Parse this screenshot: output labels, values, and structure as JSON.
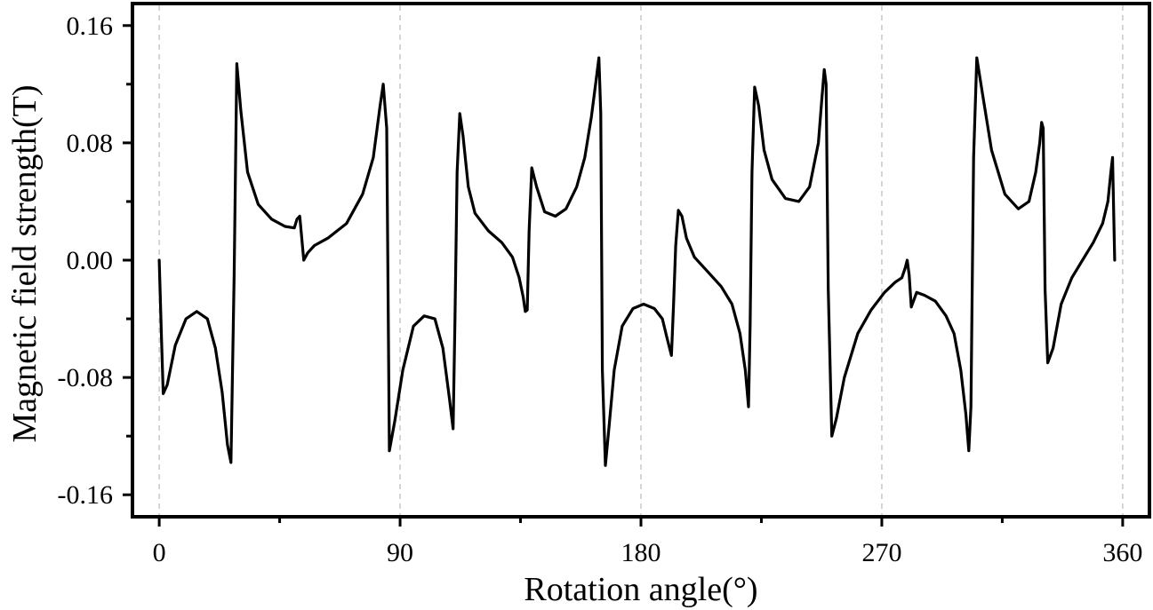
{
  "chart_data": {
    "type": "line",
    "title": "",
    "xlabel": "Rotation angle(°)",
    "ylabel": "Magnetic field strength(T)",
    "xlim": [
      -10,
      370
    ],
    "ylim": [
      -0.175,
      0.175
    ],
    "xticks": [
      0,
      90,
      180,
      270,
      360
    ],
    "xtick_labels": [
      "0",
      "90",
      "180",
      "270",
      "360"
    ],
    "yticks": [
      -0.16,
      -0.08,
      0.0,
      0.08,
      0.16
    ],
    "ytick_labels": [
      "-0.16",
      "-0.08",
      "0.00",
      "0.08",
      "0.16"
    ],
    "grid": "vertical dashed at major x ticks",
    "series": [
      {
        "name": "Magnetic field strength",
        "color": "#000000",
        "x": [
          0,
          0.8,
          1.5,
          3,
          6,
          10,
          14,
          18,
          21,
          23.5,
          25.5,
          26.8,
          28,
          29,
          30.5,
          33,
          37,
          42,
          47,
          50.5,
          51.5,
          52.5,
          54,
          55.5,
          58,
          63,
          70,
          76,
          80,
          82.5,
          83.7,
          85,
          86,
          88,
          91,
          95,
          99,
          103,
          106,
          108.5,
          109.8,
          110.5,
          111.3,
          112.3,
          113.5,
          115.5,
          118,
          123,
          128,
          132,
          134.5,
          136,
          136.8,
          137.5,
          138.2,
          139.2,
          141,
          144,
          148,
          152,
          156,
          159,
          161.5,
          163.2,
          164.3,
          165,
          165.6,
          166.7,
          168,
          170,
          173,
          177,
          181,
          185,
          188,
          190,
          191.4,
          192.2,
          193,
          194,
          195.3,
          197,
          200,
          205,
          210,
          214,
          217,
          219,
          220.2,
          220.8,
          221.5,
          222.5,
          224,
          226,
          229,
          234,
          239,
          243,
          246.3,
          247.6,
          248.5,
          249.2,
          250,
          251.3,
          253,
          256,
          261,
          266,
          271,
          275,
          277.5,
          278.8,
          279.5,
          280.2,
          281,
          283,
          286,
          290,
          294,
          297,
          299.5,
          301.4,
          302.5,
          303.3,
          304.3,
          305.5,
          307.5,
          311,
          316,
          321,
          325,
          327.5,
          329,
          329.7,
          330.3,
          331,
          332,
          334,
          337,
          341,
          345,
          349,
          352.5,
          354.5,
          355.6,
          356.2,
          357
        ],
        "y": [
          0,
          -0.05,
          -0.091,
          -0.085,
          -0.058,
          -0.04,
          -0.035,
          -0.04,
          -0.06,
          -0.09,
          -0.126,
          -0.138,
          -0.01,
          0.134,
          0.102,
          0.06,
          0.038,
          0.028,
          0.023,
          0.022,
          0.028,
          0.03,
          0.0,
          0.005,
          0.01,
          0.015,
          0.025,
          0.045,
          0.07,
          0.105,
          0.12,
          0.09,
          -0.13,
          -0.11,
          -0.075,
          -0.045,
          -0.038,
          -0.04,
          -0.06,
          -0.095,
          -0.115,
          -0.04,
          0.06,
          0.1,
          0.085,
          0.05,
          0.032,
          0.02,
          0.012,
          0.002,
          -0.012,
          -0.025,
          -0.035,
          -0.034,
          0.02,
          0.063,
          0.05,
          0.033,
          0.03,
          0.035,
          0.05,
          0.07,
          0.098,
          0.122,
          0.138,
          0.1,
          -0.075,
          -0.14,
          -0.115,
          -0.075,
          -0.045,
          -0.033,
          -0.03,
          -0.033,
          -0.04,
          -0.055,
          -0.065,
          -0.03,
          0.01,
          0.034,
          0.03,
          0.015,
          0.002,
          -0.008,
          -0.018,
          -0.03,
          -0.05,
          -0.075,
          -0.1,
          -0.045,
          0.06,
          0.118,
          0.105,
          0.075,
          0.055,
          0.042,
          0.04,
          0.05,
          0.08,
          0.11,
          0.13,
          0.12,
          -0.02,
          -0.12,
          -0.108,
          -0.08,
          -0.05,
          -0.034,
          -0.022,
          -0.015,
          -0.012,
          -0.005,
          0.0,
          -0.01,
          -0.032,
          -0.022,
          -0.024,
          -0.028,
          -0.038,
          -0.05,
          -0.075,
          -0.105,
          -0.13,
          -0.1,
          0.07,
          0.138,
          0.115,
          0.075,
          0.045,
          0.035,
          0.04,
          0.06,
          0.08,
          0.094,
          0.09,
          -0.02,
          -0.07,
          -0.06,
          -0.03,
          -0.012,
          0.0,
          0.012,
          0.025,
          0.04,
          0.06,
          0.07,
          0.0
        ]
      }
    ]
  }
}
